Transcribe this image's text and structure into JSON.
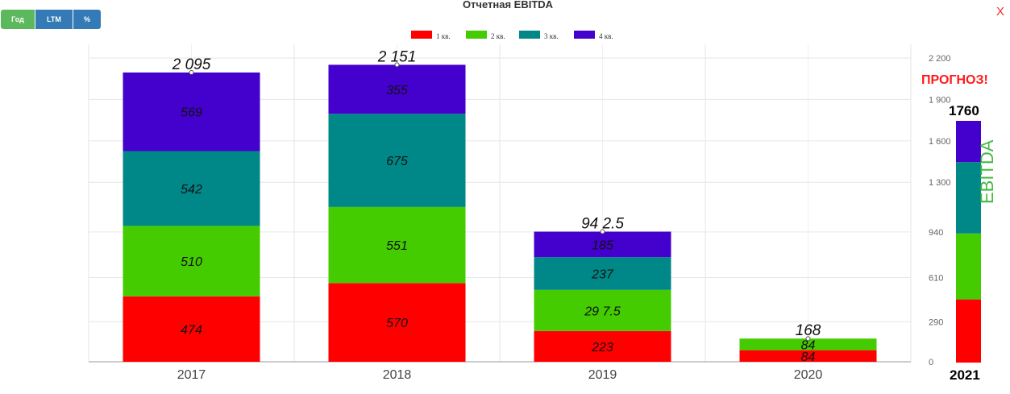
{
  "toolbar": {
    "buttons": [
      {
        "label": "Год"
      },
      {
        "label": "LTM"
      },
      {
        "label": "%"
      }
    ]
  },
  "close_label": "X",
  "chart_data": {
    "type": "bar",
    "stacked": true,
    "title": "Отчетная EBITDA",
    "categories": [
      "2017",
      "2018",
      "2019",
      "2020"
    ],
    "series": [
      {
        "name": "1 кв.",
        "color": "#ff0000",
        "values": [
          474,
          570,
          223,
          84
        ],
        "labels": [
          "474",
          "570",
          "223",
          "84"
        ]
      },
      {
        "name": "2 кв.",
        "color": "#44cc00",
        "values": [
          510,
          551,
          297.5,
          84
        ],
        "labels": [
          "510",
          "551",
          "29 7.5",
          "84"
        ]
      },
      {
        "name": "3 кв.",
        "color": "#008888",
        "values": [
          542,
          675,
          237,
          0
        ],
        "labels": [
          "542",
          "675",
          "237",
          ""
        ]
      },
      {
        "name": "4 кв.",
        "color": "#4400cc",
        "values": [
          569,
          355,
          185,
          0
        ],
        "labels": [
          "569",
          "355",
          "185",
          ""
        ]
      }
    ],
    "totals": [
      "2 095",
      "2 151",
      "94 2.5",
      "168"
    ],
    "ylim": [
      0,
      2200
    ],
    "yticks": [
      0,
      290,
      610,
      940,
      1300,
      1600,
      1900,
      2200
    ],
    "ytick_labels": [
      "0",
      "290",
      "610",
      "940",
      "1 300",
      "1 600",
      "1 900",
      "2 200"
    ],
    "yaxis_position": "right",
    "legend_position": "top-center",
    "grid": true,
    "forecast": {
      "label": "ПРОГНОЗ!",
      "year": "2021",
      "total_label": "1760",
      "axis_label": "EBITDA",
      "total": 1760,
      "segments": [
        {
          "color": "#ff0000",
          "value": 460
        },
        {
          "color": "#44cc00",
          "value": 480
        },
        {
          "color": "#008888",
          "value": 520
        },
        {
          "color": "#4400cc",
          "value": 300
        }
      ]
    }
  }
}
